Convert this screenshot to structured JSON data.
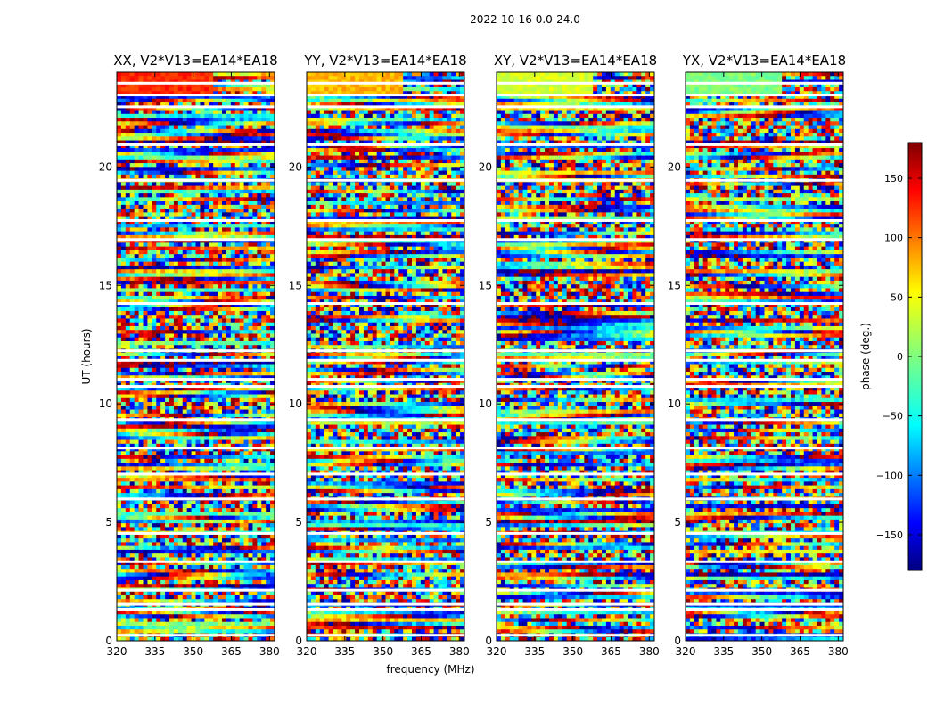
{
  "figure_title": "2022-10-16 0.0-24.0",
  "chart_data": {
    "type": "heatmap",
    "xlabel": "frequency (MHz)",
    "ylabel": "UT (hours)",
    "xlim": [
      320,
      382
    ],
    "ylim": [
      0,
      24
    ],
    "xticks": [
      320,
      335,
      350,
      365,
      380
    ],
    "yticks": [
      0,
      5,
      10,
      15,
      20
    ],
    "panels": [
      {
        "title": "XX, V2*V13=EA14*EA18",
        "polarization": "XX",
        "mean_phase_0_1h": 120
      },
      {
        "title": "YY, V2*V13=EA14*EA18",
        "polarization": "YY",
        "mean_phase_0_1h": 70
      },
      {
        "title": "XY, V2*V13=EA14*EA18",
        "polarization": "XY",
        "mean_phase_0_1h": 30
      },
      {
        "title": "YX, V2*V13=EA14*EA18",
        "polarization": "YX",
        "mean_phase_0_1h": 0
      }
    ],
    "flagged_gaps_ut_hours": [
      0.2,
      1.3,
      1.5,
      2.1,
      3.3,
      4.5,
      5.95,
      7.0,
      8.1,
      9.3,
      10.7,
      11.0,
      11.8,
      12.2,
      14.2,
      16.9,
      17.7,
      19.4,
      20.9,
      22.5,
      23.0,
      23.5
    ],
    "colorbar": {
      "label": "phase (deg.)",
      "range": [
        -180,
        180
      ],
      "ticks": [
        -150,
        -100,
        -50,
        0,
        50,
        100,
        150
      ],
      "colormap": "jet"
    }
  }
}
